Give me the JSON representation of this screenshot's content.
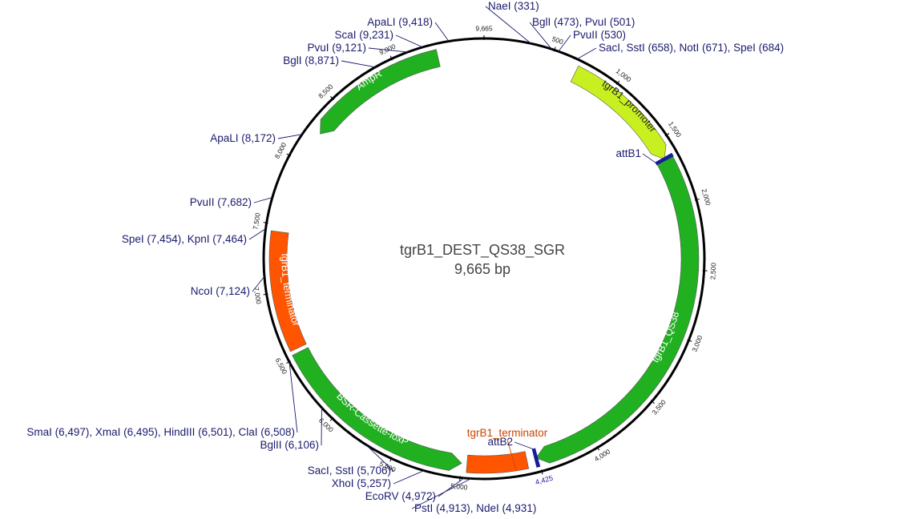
{
  "plasmid": {
    "name": "tgrB1_DEST_QS38_SGR",
    "size_label": "9,665 bp",
    "total_bp": 9665
  },
  "colors": {
    "backbone": "#000000",
    "ampr": "#20b020",
    "promoter": "#c8f020",
    "qs38": "#20b020",
    "bsr": "#20b020",
    "terminator": "#ff5500",
    "att": "#1a1a9e",
    "site_text": "#1a1a6e",
    "term_label": "#cc4400"
  },
  "features": [
    {
      "name": "AmpR",
      "label": "AmpR",
      "start": 8250,
      "end": 9320,
      "dir": -1,
      "color": "#20b020",
      "text_color": "#ffffff"
    },
    {
      "name": "tgrB1_promoter",
      "label": "tgrB1_promoter",
      "start": 700,
      "end": 1640,
      "dir": 1,
      "color": "#c8f020",
      "text_color": "#222222"
    },
    {
      "name": "tgrB1_QS38",
      "label": "tgrB1_QS38",
      "start": 1645,
      "end": 4440,
      "dir": 1,
      "color": "#20b020",
      "text_color": "#ffffff"
    },
    {
      "name": "tgrB1_terminator_small",
      "label": "",
      "start": 4510,
      "end": 4960,
      "dir": 0,
      "color": "#ff5500",
      "text_color": "#ffffff"
    },
    {
      "name": "BSR-Cassette-loxP",
      "label": "BSR-Cassette-loxP",
      "start": 5000,
      "end": 6530,
      "dir": -1,
      "color": "#20b020",
      "text_color": "#ffffff"
    },
    {
      "name": "tgrB1_terminator",
      "label": "tgrB1_terminator",
      "start": 6560,
      "end": 7450,
      "dir": 0,
      "color": "#ff5500",
      "text_color": "#ffffff"
    }
  ],
  "att_sites": [
    {
      "name": "attB1",
      "label": "attB1",
      "pos": 1640
    },
    {
      "name": "attB2",
      "label": "attB2",
      "pos": 4440
    }
  ],
  "ticks": [
    {
      "pos": 500,
      "label": "500"
    },
    {
      "pos": 1000,
      "label": "1,000"
    },
    {
      "pos": 1500,
      "label": "1,500"
    },
    {
      "pos": 2000,
      "label": "2,000"
    },
    {
      "pos": 2500,
      "label": "2,500"
    },
    {
      "pos": 3000,
      "label": "3,000"
    },
    {
      "pos": 3500,
      "label": "3,500"
    },
    {
      "pos": 4000,
      "label": "4,000"
    },
    {
      "pos": 4425,
      "label": "4,425"
    },
    {
      "pos": 5000,
      "label": "5,000"
    },
    {
      "pos": 5500,
      "label": "5,500"
    },
    {
      "pos": 6000,
      "label": "6,000"
    },
    {
      "pos": 6500,
      "label": "6,500"
    },
    {
      "pos": 7000,
      "label": "7,000"
    },
    {
      "pos": 7500,
      "label": "7,500"
    },
    {
      "pos": 8000,
      "label": "8,000"
    },
    {
      "pos": 8500,
      "label": "8,500"
    },
    {
      "pos": 9000,
      "label": "9,000"
    },
    {
      "pos": 9665,
      "label": "9,665"
    }
  ],
  "sites": [
    {
      "label": "NaeI (331)",
      "pos": 331
    },
    {
      "label": "BglI (473), PvuI (501)",
      "pos": 480
    },
    {
      "label": "PvuII (530)",
      "pos": 530
    },
    {
      "label": "SacI, SstI (658), NotI (671), SpeI (684)",
      "pos": 671
    },
    {
      "label": "ApaLI (9,418)",
      "pos": 9418
    },
    {
      "label": "ScaI (9,231)",
      "pos": 9231
    },
    {
      "label": "PvuI (9,121)",
      "pos": 9121
    },
    {
      "label": "BglI (8,871)",
      "pos": 8871
    },
    {
      "label": "ApaLI (8,172)",
      "pos": 8172
    },
    {
      "label": "PvuII (7,682)",
      "pos": 7682
    },
    {
      "label": "SpeI (7,454), KpnI (7,464)",
      "pos": 7459
    },
    {
      "label": "NcoI (7,124)",
      "pos": 7124
    },
    {
      "label": "SmaI (6,497), XmaI (6,495), HindIII (6,501), ClaI (6,508)",
      "pos": 6500
    },
    {
      "label": "BglII (6,106)",
      "pos": 6106
    },
    {
      "label": "SacI, SstI (5,706)",
      "pos": 5706
    },
    {
      "label": "XhoI (5,257)",
      "pos": 5257
    },
    {
      "label": "EcoRV (4,972)",
      "pos": 4972
    },
    {
      "label": "PstI (4,913), NdeI (4,931)",
      "pos": 4922
    }
  ],
  "callouts": {
    "term_small_label": "tgrB1_terminator"
  }
}
